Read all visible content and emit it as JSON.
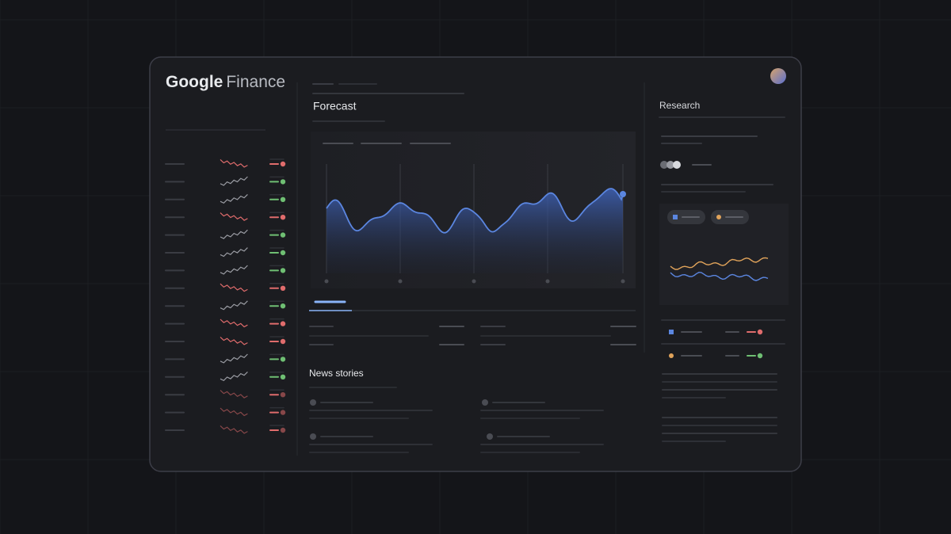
{
  "header": {
    "logo_brand": "Google",
    "logo_product": "Finance"
  },
  "forecast": {
    "title": "Forecast"
  },
  "news": {
    "title": "News stories"
  },
  "research": {
    "title": "Research"
  }
}
